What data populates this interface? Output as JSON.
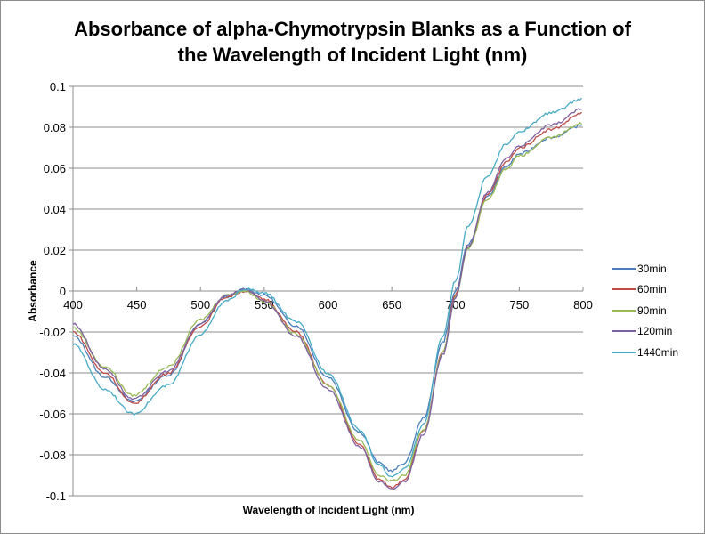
{
  "chart_data": {
    "type": "line",
    "title": "Absorbance of alpha-Chymotrypsin Blanks as a Function of the Wavelength of Incident Light (nm)",
    "title_lines": [
      "Absorbance of alpha-Chymotrypsin Blanks as a Function of",
      "the Wavelength of Incident Light (nm)"
    ],
    "xlabel": "Wavelength of Incident Light (nm)",
    "ylabel": "Absorbance",
    "xlim": [
      400,
      800
    ],
    "ylim": [
      -0.1,
      0.1
    ],
    "x_ticks": [
      "400",
      "450",
      "500",
      "550",
      "600",
      "650",
      "700",
      "750",
      "800"
    ],
    "y_ticks": [
      "0.1",
      "0.08",
      "0.06",
      "0.04",
      "0.02",
      "0",
      "-0.02",
      "-0.04",
      "-0.06",
      "-0.08",
      "-0.1"
    ],
    "grid": "horizontal",
    "legend_position": "right",
    "x": [
      400,
      425,
      447,
      475,
      500,
      520,
      535,
      550,
      575,
      600,
      625,
      640,
      650,
      660,
      675,
      690,
      700,
      710,
      725,
      740,
      750,
      775,
      800
    ],
    "series": [
      {
        "name": "30min",
        "color": "#4a7ebb",
        "values": [
          -0.022,
          -0.042,
          -0.054,
          -0.041,
          -0.016,
          -0.003,
          0.001,
          -0.002,
          -0.017,
          -0.042,
          -0.069,
          -0.084,
          -0.088,
          -0.084,
          -0.062,
          -0.025,
          0.0,
          0.023,
          0.046,
          0.061,
          0.067,
          0.075,
          0.081
        ]
      },
      {
        "name": "60min",
        "color": "#be4b48",
        "values": [
          -0.02,
          -0.04,
          -0.055,
          -0.04,
          -0.017,
          -0.003,
          0.0,
          -0.004,
          -0.02,
          -0.046,
          -0.075,
          -0.092,
          -0.096,
          -0.092,
          -0.068,
          -0.03,
          -0.002,
          0.022,
          0.047,
          0.063,
          0.07,
          0.079,
          0.087
        ]
      },
      {
        "name": "90min",
        "color": "#98b954",
        "values": [
          -0.018,
          -0.037,
          -0.051,
          -0.037,
          -0.014,
          -0.002,
          0.0,
          -0.005,
          -0.021,
          -0.046,
          -0.073,
          -0.09,
          -0.093,
          -0.09,
          -0.068,
          -0.03,
          -0.003,
          0.021,
          0.045,
          0.06,
          0.066,
          0.075,
          0.082
        ]
      },
      {
        "name": "120min",
        "color": "#7d60a0",
        "values": [
          -0.016,
          -0.038,
          -0.053,
          -0.039,
          -0.016,
          -0.002,
          0.001,
          -0.005,
          -0.022,
          -0.048,
          -0.076,
          -0.093,
          -0.097,
          -0.093,
          -0.07,
          -0.031,
          -0.003,
          0.022,
          0.048,
          0.065,
          0.071,
          0.081,
          0.089
        ]
      },
      {
        "name": "1440min",
        "color": "#46aac5",
        "values": [
          -0.026,
          -0.048,
          -0.06,
          -0.046,
          -0.021,
          -0.005,
          0.001,
          -0.001,
          -0.015,
          -0.04,
          -0.068,
          -0.085,
          -0.091,
          -0.087,
          -0.065,
          -0.022,
          0.005,
          0.032,
          0.056,
          0.072,
          0.078,
          0.087,
          0.094
        ]
      }
    ]
  }
}
